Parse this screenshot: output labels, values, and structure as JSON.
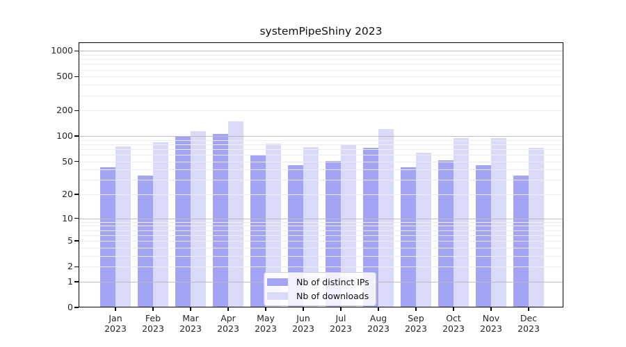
{
  "title": "systemPipeShiny 2023",
  "chart_data": {
    "type": "bar",
    "title": "systemPipeShiny 2023",
    "categories": [
      "Jan 2023",
      "Feb 2023",
      "Mar 2023",
      "Apr 2023",
      "May 2023",
      "Jun 2023",
      "Jul 2023",
      "Aug 2023",
      "Sep 2023",
      "Oct 2023",
      "Nov 2023",
      "Dec 2023"
    ],
    "series": [
      {
        "name": "Nb of distinct IPs",
        "color": "#a4a4f4",
        "values": [
          43,
          34,
          100,
          105,
          60,
          45,
          51,
          73,
          43,
          52,
          45,
          34
        ]
      },
      {
        "name": "Nb of downloads",
        "color": "#d9d9f9",
        "values": [
          75,
          84,
          114,
          150,
          82,
          74,
          79,
          120,
          63,
          94,
          94,
          73
        ]
      }
    ],
    "xlabel": "",
    "ylabel": "",
    "yscale": "log1p",
    "ylim": [
      0,
      1258
    ],
    "ytick_labels": [
      "1000",
      "500",
      "200",
      "100",
      "50",
      "20",
      "10",
      "5",
      "2",
      "1",
      "0"
    ],
    "grid": true,
    "legend_position": "lower-center",
    "colors": {
      "grid_major": "#bdbdbd",
      "grid_minor": "#ececec",
      "axis": "#000000",
      "tick_text": "#262626",
      "background": "#ffffff"
    }
  }
}
